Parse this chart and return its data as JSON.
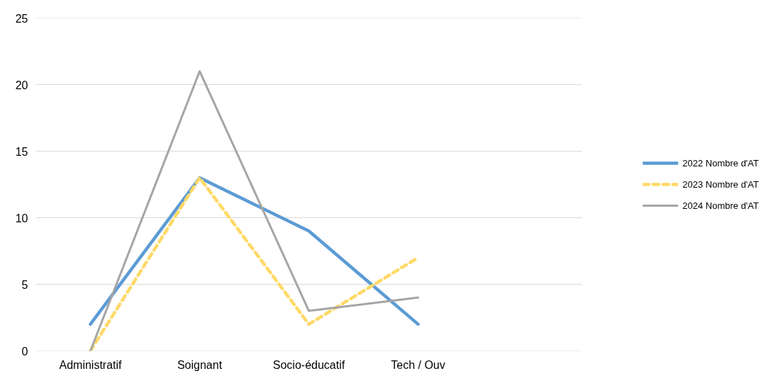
{
  "chart_data": {
    "type": "line",
    "categories": [
      "Administratif",
      "Soignant",
      "Socio-éducatif",
      "Tech / Ouv",
      null
    ],
    "series": [
      {
        "name": "2022 Nombre d'AT",
        "color": "#5b9bd5",
        "values": [
          2,
          13,
          9,
          2,
          null
        ],
        "line_style": "solid"
      },
      {
        "name": "2023 Nombre d'AT",
        "color": "#ffd966",
        "values": [
          0,
          13,
          2,
          7,
          null
        ],
        "line_style": "dashed"
      },
      {
        "name": "2024 Nombre d'AT",
        "color": "#a5a5a5",
        "values": [
          0,
          21,
          3,
          4,
          null
        ],
        "line_style": "solid"
      }
    ],
    "ylim": [
      0,
      25
    ],
    "yticks": [
      0,
      5,
      10,
      15,
      20,
      25
    ],
    "grid": "y",
    "legend": "right"
  }
}
